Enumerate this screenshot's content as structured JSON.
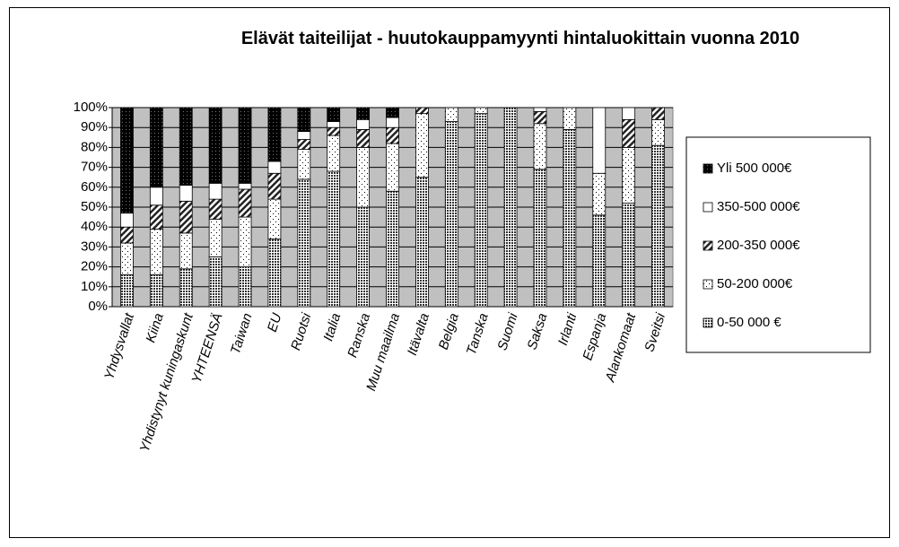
{
  "chart_data": {
    "type": "stacked_bar",
    "title": "Elävät taiteilijat - huutokauppamyynti hintaluokittain vuonna 2010",
    "categories": [
      "Yhdysvallat",
      "Kiina",
      "Yhdistynyt kuningaskunt",
      "YHTEENSÄ",
      "Taiwan",
      "EU",
      "Ruotsi",
      "Italia",
      "Ranska",
      "Muu maailma",
      "Itävalta",
      "Belgia",
      "Tanska",
      "Suomi",
      "Saksa",
      "Irlanti",
      "Espanja",
      "Alankomaat",
      "Sveitsi"
    ],
    "series": [
      {
        "name": "0-50 000 €",
        "color": "#555555",
        "values": [
          16,
          16,
          19,
          25,
          20,
          34,
          64,
          68,
          50,
          58,
          65,
          93,
          97,
          100,
          69,
          89,
          46,
          52,
          81
        ]
      },
      {
        "name": "50-200 000€",
        "color": "#ffffff",
        "values": [
          16,
          23,
          18,
          19,
          25,
          20,
          15,
          18,
          30,
          24,
          32,
          7,
          3,
          0,
          23,
          11,
          21,
          28,
          13
        ]
      },
      {
        "name": "200-350 000€",
        "color": "#888888",
        "values": [
          8,
          12,
          16,
          10,
          14,
          13,
          5,
          4,
          9,
          8,
          3,
          0,
          0,
          0,
          6,
          0,
          0,
          14,
          6
        ]
      },
      {
        "name": "350-500 000€",
        "color": "#ffffff",
        "values": [
          7,
          9,
          8,
          8,
          3,
          6,
          4,
          3,
          5,
          5,
          0,
          0,
          0,
          0,
          2,
          0,
          33,
          6,
          0
        ]
      },
      {
        "name": "Yli 500 000€",
        "color": "#000000",
        "values": [
          53,
          40,
          39,
          38,
          38,
          27,
          12,
          7,
          6,
          5,
          0,
          0,
          0,
          0,
          0,
          0,
          0,
          0,
          0
        ]
      }
    ],
    "ylim": [
      0,
      100
    ],
    "yticks": [
      {
        "value": 0,
        "label": "0%"
      },
      {
        "value": 10,
        "label": "10%"
      },
      {
        "value": 20,
        "label": "20%"
      },
      {
        "value": 30,
        "label": "30%"
      },
      {
        "value": 40,
        "label": "40%"
      },
      {
        "value": 50,
        "label": "50%"
      },
      {
        "value": 60,
        "label": "60%"
      },
      {
        "value": 70,
        "label": "70%"
      },
      {
        "value": 80,
        "label": "80%"
      },
      {
        "value": 90,
        "label": "90%"
      },
      {
        "value": 100,
        "label": "100%"
      }
    ],
    "grid": true,
    "legend": "right"
  }
}
